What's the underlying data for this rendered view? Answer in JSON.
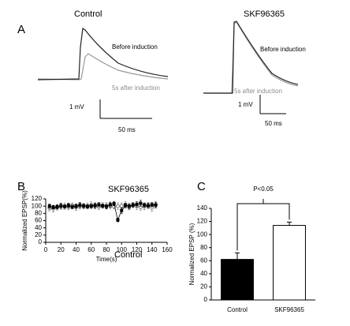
{
  "panel_a": {
    "label": "A",
    "left": {
      "title": "Control",
      "before": "Before induction",
      "after": "5s after induction",
      "scale_v": "1 mV",
      "scale_t": "50 ms"
    },
    "right": {
      "title": "SKF96365",
      "before": "Before induction",
      "after": "5s after induction",
      "scale_v": "1 mV",
      "scale_t": "50 ms"
    }
  },
  "chart_data": [
    {
      "type": "scatter",
      "panel": "B",
      "xlabel": "Time(s)",
      "ylabel": "Normalized EPSP(%)",
      "annotations": [
        "SKF96365",
        "Control"
      ],
      "x": [
        5,
        10,
        15,
        20,
        25,
        30,
        35,
        40,
        45,
        50,
        55,
        60,
        65,
        70,
        75,
        80,
        85,
        90,
        95,
        100,
        105,
        110,
        115,
        120,
        125,
        130,
        135,
        140,
        145
      ],
      "series": [
        {
          "marker": "circle",
          "color": "#808080",
          "values": [
            95,
            93,
            96,
            99,
            100,
            98,
            102,
            97,
            100,
            99,
            101,
            103,
            100,
            98,
            102,
            101,
            100,
            99,
            100,
            101,
            104,
            98,
            103,
            100,
            97,
            99,
            102,
            96,
            104
          ],
          "errors": [
            8,
            9,
            7,
            8,
            9,
            8,
            7,
            9,
            8,
            7,
            8,
            9,
            8,
            7,
            8,
            9,
            8,
            7,
            9,
            8,
            9,
            8,
            7,
            9,
            8,
            9,
            8,
            10,
            9
          ]
        },
        {
          "marker": "square",
          "color": "#000000",
          "values": [
            100,
            97,
            98,
            101,
            99,
            102,
            98,
            100,
            103,
            101,
            99,
            100,
            102,
            104,
            101,
            99,
            104,
            107,
            62,
            88,
            102,
            100,
            103,
            105,
            108,
            103,
            101,
            104,
            103
          ],
          "errors": [
            6,
            5,
            6,
            7,
            5,
            6,
            5,
            6,
            7,
            6,
            5,
            6,
            7,
            6,
            5,
            6,
            7,
            6,
            5,
            8,
            6,
            7,
            6,
            7,
            8,
            6,
            7,
            6,
            7
          ]
        }
      ],
      "xlim": [
        0,
        160
      ],
      "xticks": [
        0,
        20,
        40,
        60,
        80,
        100,
        120,
        140,
        160
      ],
      "ylim": [
        0,
        120
      ],
      "yticks": [
        0,
        20,
        40,
        60,
        80,
        100,
        120
      ]
    },
    {
      "type": "bar",
      "panel": "C",
      "ylabel": "Normalized EPSP (%)",
      "annotation": "P<0.05",
      "categories": [
        "Control",
        "SKF96365"
      ],
      "values": [
        62,
        114
      ],
      "errors": [
        10,
        5
      ],
      "colors": [
        "#000000",
        "#ffffff"
      ],
      "ylim": [
        0,
        140
      ],
      "yticks": [
        0,
        20,
        40,
        60,
        80,
        100,
        120,
        140
      ]
    }
  ]
}
